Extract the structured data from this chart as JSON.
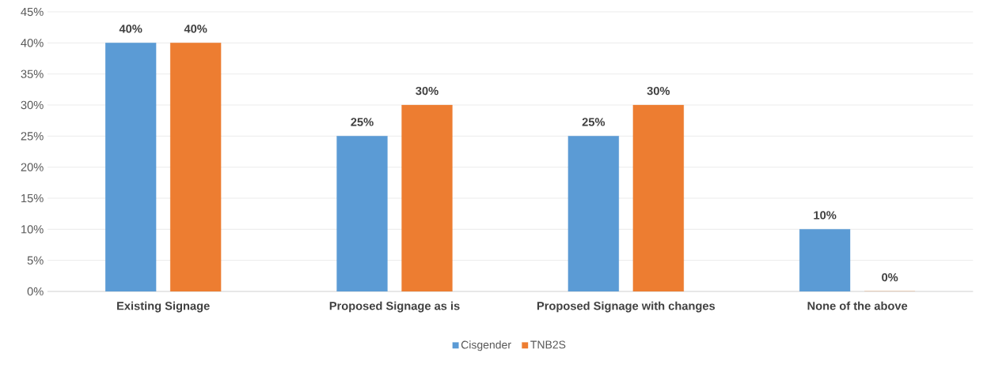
{
  "chart_data": {
    "type": "bar",
    "categories": [
      "Existing Signage",
      "Proposed Signage as is",
      "Proposed Signage with changes",
      "None of the above"
    ],
    "series": [
      {
        "name": "Cisgender",
        "color": "#5b9bd5",
        "values": [
          40,
          25,
          25,
          10
        ],
        "value_labels": [
          "40%",
          "25%",
          "25%",
          "10%"
        ]
      },
      {
        "name": "TNB2S",
        "color": "#ed7d31",
        "values": [
          40,
          30,
          30,
          0
        ],
        "value_labels": [
          "40%",
          "30%",
          "30%",
          "0%"
        ]
      }
    ],
    "ylim": [
      0,
      45
    ],
    "yticks": [
      {
        "value": 0,
        "label": "0%"
      },
      {
        "value": 5,
        "label": "5%"
      },
      {
        "value": 10,
        "label": "10%"
      },
      {
        "value": 15,
        "label": "15%"
      },
      {
        "value": 20,
        "label": "20%"
      },
      {
        "value": 25,
        "label": "25%"
      },
      {
        "value": 30,
        "label": "30%"
      },
      {
        "value": 35,
        "label": "35%"
      },
      {
        "value": 40,
        "label": "40%"
      },
      {
        "value": 45,
        "label": "45%"
      }
    ],
    "grid": "y",
    "legend": "bottom"
  }
}
